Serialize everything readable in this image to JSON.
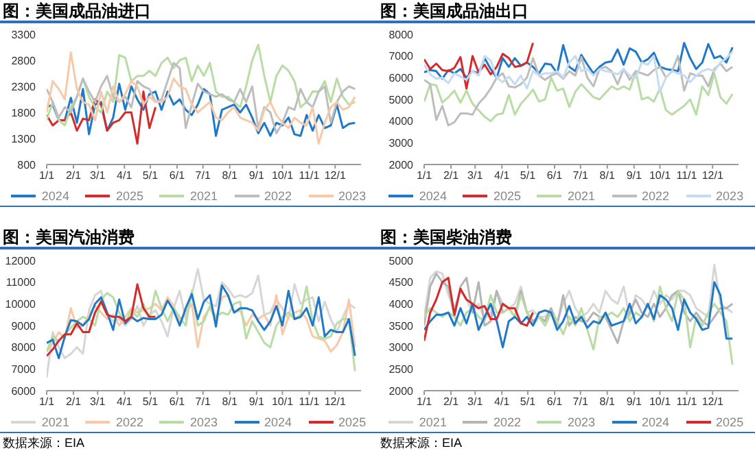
{
  "chart_data": [
    {
      "type": "line",
      "title": "图：美国成品油进口",
      "legend": "bottom",
      "marker": "none",
      "xlim": [
        "--01-01",
        "--12-31"
      ],
      "ylim": [
        800,
        3300
      ],
      "yticks": [
        800,
        1300,
        1800,
        2300,
        2800,
        3300
      ],
      "xticks": [
        {
          "value": "--01-01",
          "label": "1/1"
        },
        {
          "value": "--02-01",
          "label": "2/1"
        },
        {
          "value": "--03-01",
          "label": "3/1"
        },
        {
          "value": "--04-01",
          "label": "4/1"
        },
        {
          "value": "--05-01",
          "label": "5/1"
        },
        {
          "value": "--06-01",
          "label": "6/1"
        },
        {
          "value": "--07-01",
          "label": "7/1"
        },
        {
          "value": "--08-01",
          "label": "8/1"
        },
        {
          "value": "--09-01",
          "label": "9/1"
        },
        {
          "value": "--10-01",
          "label": "10/1"
        },
        {
          "value": "--11-01",
          "label": "11/1"
        },
        {
          "value": "--12-01",
          "label": "12/1"
        }
      ],
      "x": [
        "--01-01",
        "--01-08",
        "--01-15",
        "--01-22",
        "--01-29",
        "--02-05",
        "--02-12",
        "--02-19",
        "--02-26",
        "--03-05",
        "--03-12",
        "--03-19",
        "--03-26",
        "--04-02",
        "--04-09",
        "--04-16",
        "--04-23",
        "--04-30",
        "--05-07",
        "--05-14",
        "--05-21",
        "--05-28",
        "--06-04",
        "--06-11",
        "--06-18",
        "--06-25",
        "--07-02",
        "--07-09",
        "--07-16",
        "--07-23",
        "--07-30",
        "--08-06",
        "--08-13",
        "--08-20",
        "--08-27",
        "--09-03",
        "--09-10",
        "--09-17",
        "--09-24",
        "--10-01",
        "--10-08",
        "--10-15",
        "--10-22",
        "--10-29",
        "--11-05",
        "--11-12",
        "--11-19",
        "--11-26",
        "--12-03",
        "--12-10",
        "--12-17",
        "--12-24"
      ],
      "series": [
        {
          "name": "2024",
          "color": "#1f78c8",
          "values": [
            1900,
            1950,
            1650,
            1650,
            2080,
            1600,
            2250,
            1380,
            1950,
            2000,
            1450,
            1700,
            2350,
            1850,
            2300,
            2050,
            1850,
            2150,
            2200,
            1850,
            2200,
            1950,
            2050,
            1850,
            1750,
            1950,
            2250,
            2150,
            1350,
            1850,
            1900,
            1950,
            1800,
            1950,
            1700,
            1400,
            1600,
            1350,
            1600,
            1550,
            1700,
            1380,
            1350,
            1750,
            1450,
            1750,
            1500,
            1550,
            1950,
            1500,
            1580,
            1600
          ]
        },
        {
          "name": "2025",
          "color": "#d62a2a",
          "x": [
            "--01-01",
            "--01-08",
            "--01-15",
            "--01-22",
            "--01-29",
            "--02-05",
            "--02-12",
            "--02-19",
            "--02-26",
            "--03-05",
            "--03-12",
            "--03-19",
            "--03-26",
            "--04-02",
            "--04-09",
            "--04-16",
            "--04-23",
            "--04-30",
            "--05-07"
          ],
          "values": [
            1750,
            1550,
            1650,
            1650,
            1800,
            1450,
            1680,
            1650,
            2050,
            1950,
            1450,
            1600,
            1650,
            1800,
            1800,
            1200,
            2200,
            1500,
            1900
          ]
        },
        {
          "name": "2021",
          "color": "#b8dca4",
          "values": [
            1650,
            2000,
            1650,
            1550,
            1900,
            2100,
            2450,
            2100,
            1900,
            1800,
            2200,
            2000,
            2900,
            2850,
            2400,
            2500,
            2500,
            2600,
            2500,
            2750,
            2850,
            2650,
            2800,
            2850,
            2400,
            2700,
            2500,
            2750,
            2200,
            2100,
            2100,
            2000,
            1900,
            2300,
            2800,
            3100,
            2500,
            2000,
            2500,
            2700,
            2600,
            2400,
            1900,
            2000,
            2200,
            2200,
            2400,
            2000,
            2450,
            2100,
            1950,
            2000
          ]
        },
        {
          "name": "2022",
          "color": "#bdbdbd",
          "values": [
            2250,
            2000,
            1700,
            1900,
            1800,
            2100,
            2450,
            2200,
            2000,
            2300,
            2500,
            2100,
            2000,
            2100,
            1900,
            2400,
            2300,
            2250,
            2000,
            2050,
            2400,
            2750,
            2650,
            1500,
            1950,
            2350,
            2200,
            2150,
            2100,
            2150,
            2050,
            2000,
            2250,
            2000,
            2300,
            1500,
            1900,
            1800,
            1400,
            1600,
            1900,
            1850,
            2250,
            2000,
            1900,
            2200,
            2300,
            1600,
            2000,
            2200,
            2300,
            2250
          ]
        },
        {
          "name": "2023",
          "color": "#f8c8a8",
          "values": [
            1800,
            2400,
            2250,
            2050,
            2950,
            2250,
            2000,
            1950,
            1650,
            2200,
            1800,
            2300,
            2000,
            2150,
            2400,
            2300,
            1950,
            2100,
            2000,
            2000,
            2100,
            2450,
            2300,
            2250,
            1950,
            1800,
            1900,
            2000,
            1700,
            1650,
            1800,
            1900,
            1700,
            1650,
            1600,
            1450,
            1850,
            2000,
            1750,
            1600,
            1500,
            1700,
            1600,
            1550,
            1900,
            1200,
            1600,
            1900,
            2000,
            1850,
            1900,
            2100
          ]
        }
      ]
    },
    {
      "type": "line",
      "title": "图：美国成品油出口",
      "legend": "bottom",
      "marker": "none",
      "xlim": [
        "--01-01",
        "--12-31"
      ],
      "ylim": [
        2000,
        8000
      ],
      "yticks": [
        2000,
        3000,
        4000,
        5000,
        6000,
        7000,
        8000
      ],
      "xticks": [
        {
          "value": "--01-01",
          "label": "1/1"
        },
        {
          "value": "--02-01",
          "label": "2/1"
        },
        {
          "value": "--03-01",
          "label": "3/1"
        },
        {
          "value": "--04-01",
          "label": "4/1"
        },
        {
          "value": "--05-01",
          "label": "5/1"
        },
        {
          "value": "--06-01",
          "label": "6/1"
        },
        {
          "value": "--07-01",
          "label": "7/1"
        },
        {
          "value": "--08-01",
          "label": "8/1"
        },
        {
          "value": "--09-01",
          "label": "9/1"
        },
        {
          "value": "--10-01",
          "label": "10/1"
        },
        {
          "value": "--11-01",
          "label": "11/1"
        },
        {
          "value": "--12-01",
          "label": "12/1"
        }
      ],
      "x": [
        "--01-01",
        "--01-08",
        "--01-15",
        "--01-22",
        "--01-29",
        "--02-05",
        "--02-12",
        "--02-19",
        "--02-26",
        "--03-05",
        "--03-12",
        "--03-19",
        "--03-26",
        "--04-02",
        "--04-09",
        "--04-16",
        "--04-23",
        "--04-30",
        "--05-07",
        "--05-14",
        "--05-21",
        "--05-28",
        "--06-04",
        "--06-11",
        "--06-18",
        "--06-25",
        "--07-02",
        "--07-09",
        "--07-16",
        "--07-23",
        "--07-30",
        "--08-06",
        "--08-13",
        "--08-20",
        "--08-27",
        "--09-03",
        "--09-10",
        "--09-17",
        "--09-24",
        "--10-01",
        "--10-08",
        "--10-15",
        "--10-22",
        "--10-29",
        "--11-05",
        "--11-12",
        "--11-19",
        "--11-26",
        "--12-03",
        "--12-10",
        "--12-17",
        "--12-24"
      ],
      "series": [
        {
          "name": "2024",
          "color": "#1f78c8",
          "values": [
            6250,
            6350,
            6300,
            5950,
            6350,
            6200,
            6400,
            6000,
            6300,
            6200,
            6900,
            6400,
            6000,
            6900,
            6500,
            6900,
            6550,
            6700,
            6500,
            6200,
            6650,
            6600,
            6200,
            7500,
            6500,
            6300,
            7050,
            6600,
            6200,
            6500,
            6700,
            6750,
            7300,
            6600,
            7350,
            7200,
            6700,
            6850,
            7150,
            6500,
            6400,
            6350,
            6300,
            7600,
            6900,
            6400,
            6700,
            7550,
            6900,
            7000,
            6700,
            7400
          ]
        },
        {
          "name": "2025",
          "color": "#d62a2a",
          "x": [
            "--01-01",
            "--01-08",
            "--01-15",
            "--01-22",
            "--01-29",
            "--02-05",
            "--02-12",
            "--02-19",
            "--02-26",
            "--03-05",
            "--03-12",
            "--03-19",
            "--03-26",
            "--04-02",
            "--04-09",
            "--04-16",
            "--04-23",
            "--04-30",
            "--05-07"
          ],
          "values": [
            6850,
            6400,
            6650,
            6350,
            6300,
            6450,
            6950,
            5500,
            7000,
            6250,
            6600,
            6150,
            6500,
            7100,
            6900,
            6500,
            6550,
            6700,
            7600
          ]
        },
        {
          "name": "2021",
          "color": "#b8dca4",
          "values": [
            4900,
            5700,
            5650,
            4850,
            5100,
            5400,
            4850,
            5400,
            4800,
            4500,
            4200,
            4000,
            4300,
            4350,
            5200,
            4300,
            4800,
            5100,
            5450,
            4900,
            5000,
            6000,
            5400,
            5500,
            4650,
            5350,
            5700,
            5400,
            5100,
            5000,
            5300,
            5600,
            5450,
            5600,
            5450,
            6300,
            5000,
            5100,
            4900,
            5500,
            4500,
            4300,
            4500,
            4700,
            5000,
            4300,
            5600,
            5200,
            6200,
            5100,
            4800,
            5250
          ]
        },
        {
          "name": "2022",
          "color": "#bdbdbd",
          "values": [
            5900,
            5700,
            4050,
            4700,
            3800,
            3950,
            4350,
            4350,
            4300,
            4800,
            5100,
            5500,
            6000,
            6200,
            5600,
            5550,
            5700,
            6000,
            6900,
            6100,
            5900,
            6100,
            6200,
            5950,
            6300,
            6100,
            6950,
            6000,
            5600,
            6400,
            6500,
            6300,
            5700,
            6400,
            5900,
            6300,
            6200,
            6100,
            6350,
            6500,
            6000,
            6300,
            7000,
            5400,
            6200,
            6100,
            6100,
            5600,
            6400,
            6650,
            6300,
            6500
          ]
        },
        {
          "name": "2023",
          "color": "#c4dcf2",
          "values": [
            6600,
            6150,
            5950,
            6000,
            5750,
            6200,
            6050,
            5900,
            6300,
            6100,
            7000,
            6800,
            6000,
            5800,
            6050,
            5700,
            6100,
            5500,
            6300,
            6100,
            6200,
            6200,
            6300,
            6000,
            6700,
            7000,
            6300,
            6400,
            6100,
            6400,
            6300,
            6250,
            6150,
            6400,
            6100,
            6000,
            6700,
            6600,
            7000,
            5350,
            6000,
            6300,
            6200,
            6100,
            5800,
            6100,
            6300,
            6400,
            6300,
            6700,
            6900,
            7200
          ]
        }
      ]
    },
    {
      "type": "line",
      "title": "图：美国汽油消费",
      "legend": "bottom",
      "marker": "none",
      "annotations": [
        "数据来源：EIA"
      ],
      "xlim": [
        "--01-01",
        "--12-31"
      ],
      "ylim": [
        6000,
        12000
      ],
      "yticks": [
        6000,
        7000,
        8000,
        9000,
        10000,
        11000,
        12000
      ],
      "xticks": [
        {
          "value": "--01-01",
          "label": "1/1"
        },
        {
          "value": "--02-01",
          "label": "2/1"
        },
        {
          "value": "--03-01",
          "label": "3/1"
        },
        {
          "value": "--04-01",
          "label": "4/1"
        },
        {
          "value": "--05-01",
          "label": "5/1"
        },
        {
          "value": "--06-01",
          "label": "6/1"
        },
        {
          "value": "--07-01",
          "label": "7/1"
        },
        {
          "value": "--08-01",
          "label": "8/1"
        },
        {
          "value": "--09-01",
          "label": "9/1"
        },
        {
          "value": "--10-01",
          "label": "10/1"
        },
        {
          "value": "--11-01",
          "label": "11/1"
        },
        {
          "value": "--12-01",
          "label": "12/1"
        }
      ],
      "x": [
        "--01-01",
        "--01-08",
        "--01-15",
        "--01-22",
        "--01-29",
        "--02-05",
        "--02-12",
        "--02-19",
        "--02-26",
        "--03-05",
        "--03-12",
        "--03-19",
        "--03-26",
        "--04-02",
        "--04-09",
        "--04-16",
        "--04-23",
        "--04-30",
        "--05-07",
        "--05-14",
        "--05-21",
        "--05-28",
        "--06-04",
        "--06-11",
        "--06-18",
        "--06-25",
        "--07-02",
        "--07-09",
        "--07-16",
        "--07-23",
        "--07-30",
        "--08-06",
        "--08-13",
        "--08-20",
        "--08-27",
        "--09-03",
        "--09-10",
        "--09-17",
        "--09-24",
        "--10-01",
        "--10-08",
        "--10-15",
        "--10-22",
        "--10-29",
        "--11-05",
        "--11-12",
        "--11-19",
        "--11-26",
        "--12-03",
        "--12-10",
        "--12-17",
        "--12-24"
      ],
      "series": [
        {
          "name": "2021",
          "color": "#d6d6d6",
          "values": [
            6600,
            8700,
            8000,
            7500,
            7700,
            8000,
            7700,
            9700,
            10400,
            10600,
            9500,
            9200,
            9300,
            9000,
            9300,
            9900,
            9000,
            9500,
            9700,
            9200,
            8500,
            9800,
            10600,
            9300,
            10400,
            11600,
            10200,
            10000,
            9900,
            11000,
            10700,
            10300,
            10400,
            10300,
            10500,
            11300,
            9500,
            9600,
            10200,
            9800,
            9300,
            10900,
            10000,
            10200,
            10300,
            9200,
            10100,
            9300,
            8700,
            9400,
            10000,
            9800
          ]
        },
        {
          "name": "2022",
          "color": "#f8c8a8",
          "values": [
            7800,
            8200,
            8700,
            8400,
            9800,
            8900,
            9000,
            9500,
            9900,
            9600,
            9300,
            9500,
            9000,
            9400,
            9800,
            9600,
            9700,
            9800,
            10000,
            9700,
            10300,
            9900,
            9200,
            9600,
            10000,
            8000,
            9400,
            9800,
            9300,
            10300,
            10400,
            9600,
            9700,
            9000,
            9500,
            9300,
            9500,
            9000,
            10400,
            8600,
            9400,
            9600,
            9700,
            9300,
            8500,
            8400,
            8300,
            7800,
            8100,
            8700,
            10200,
            8000
          ]
        },
        {
          "name": "2023",
          "color": "#b8dca4",
          "values": [
            7800,
            8500,
            8300,
            8600,
            8900,
            9200,
            9400,
            9300,
            9000,
            10200,
            10500,
            10300,
            9600,
            9100,
            9700,
            9400,
            10000,
            9300,
            10600,
            9800,
            9200,
            9800,
            9400,
            9000,
            10600,
            9000,
            9200,
            9900,
            9400,
            9600,
            9500,
            10000,
            10100,
            8400,
            9200,
            8700,
            8200,
            8000,
            9000,
            9400,
            9600,
            9300,
            9500,
            10800,
            9200,
            8500,
            8400,
            8500,
            9100,
            9300,
            9300,
            6900
          ]
        },
        {
          "name": "2024",
          "color": "#1f78c8",
          "values": [
            8200,
            8350,
            7500,
            8500,
            9250,
            9200,
            9000,
            9300,
            10000,
            10300,
            9600,
            8800,
            10200,
            9100,
            9400,
            9200,
            9350,
            9300,
            9300,
            9500,
            10150,
            9700,
            9000,
            9800,
            10450,
            9300,
            10100,
            10400,
            8950,
            10850,
            10400,
            9600,
            9800,
            9800,
            9700,
            9200,
            8800,
            9200,
            9900,
            9000,
            10600,
            9300,
            9400,
            9800,
            9000,
            10300,
            8500,
            8800,
            8700,
            8700,
            9300,
            7600
          ]
        },
        {
          "name": "2025",
          "color": "#d62a2a",
          "x": [
            "--01-01",
            "--01-08",
            "--01-15",
            "--01-22",
            "--01-29",
            "--02-05",
            "--02-12",
            "--02-19",
            "--02-26",
            "--03-05",
            "--03-12",
            "--03-19",
            "--03-26",
            "--04-02",
            "--04-09",
            "--04-16",
            "--04-23",
            "--04-30",
            "--05-07"
          ],
          "values": [
            7600,
            7900,
            8300,
            8600,
            8600,
            9100,
            8700,
            8700,
            9600,
            10100,
            9500,
            9400,
            9400,
            9200,
            9400,
            10900,
            9800,
            9400,
            9400
          ]
        }
      ]
    },
    {
      "type": "line",
      "title": "图：美国柴油消费",
      "legend": "bottom",
      "marker": "none",
      "annotations": [
        "数据来源：EIA"
      ],
      "xlim": [
        "--01-01",
        "--12-31"
      ],
      "ylim": [
        2000,
        5000
      ],
      "yticks": [
        2000,
        2500,
        3000,
        3500,
        4000,
        4500,
        5000
      ],
      "xticks": [
        {
          "value": "--01-01",
          "label": "1/1"
        },
        {
          "value": "--02-01",
          "label": "2/1"
        },
        {
          "value": "--03-01",
          "label": "3/1"
        },
        {
          "value": "--04-01",
          "label": "4/1"
        },
        {
          "value": "--05-01",
          "label": "5/1"
        },
        {
          "value": "--06-01",
          "label": "6/1"
        },
        {
          "value": "--07-01",
          "label": "7/1"
        },
        {
          "value": "--08-01",
          "label": "8/1"
        },
        {
          "value": "--09-01",
          "label": "9/1"
        },
        {
          "value": "--10-01",
          "label": "10/1"
        },
        {
          "value": "--11-01",
          "label": "11/1"
        },
        {
          "value": "--12-01",
          "label": "12/1"
        }
      ],
      "x": [
        "--01-01",
        "--01-08",
        "--01-15",
        "--01-22",
        "--01-29",
        "--02-05",
        "--02-12",
        "--02-19",
        "--02-26",
        "--03-05",
        "--03-12",
        "--03-19",
        "--03-26",
        "--04-02",
        "--04-09",
        "--04-16",
        "--04-23",
        "--04-30",
        "--05-07",
        "--05-14",
        "--05-21",
        "--05-28",
        "--06-04",
        "--06-11",
        "--06-18",
        "--06-25",
        "--07-02",
        "--07-09",
        "--07-16",
        "--07-23",
        "--07-30",
        "--08-06",
        "--08-13",
        "--08-20",
        "--08-27",
        "--09-03",
        "--09-10",
        "--09-17",
        "--09-24",
        "--10-01",
        "--10-08",
        "--10-15",
        "--10-22",
        "--10-29",
        "--11-05",
        "--11-12",
        "--11-19",
        "--11-26",
        "--12-03",
        "--12-10",
        "--12-17",
        "--12-24"
      ],
      "series": [
        {
          "name": "2021",
          "color": "#d6d6d6",
          "values": [
            3700,
            4600,
            4750,
            4700,
            4200,
            3900,
            4300,
            4100,
            3800,
            4000,
            3650,
            3800,
            4300,
            4000,
            3900,
            4000,
            4400,
            3800,
            3850,
            3700,
            3700,
            3900,
            3600,
            4000,
            4300,
            3900,
            3700,
            3800,
            4000,
            3800,
            4300,
            4100,
            4000,
            4400,
            3700,
            4200,
            4100,
            3900,
            4300,
            4000,
            4200,
            4100,
            4300,
            4300,
            4200,
            3900,
            3800,
            3700,
            4900,
            4000,
            3900,
            3800
          ]
        },
        {
          "name": "2022",
          "color": "#b4b4b4",
          "values": [
            3500,
            4400,
            4700,
            4500,
            4400,
            3700,
            4400,
            4600,
            3800,
            4500,
            3500,
            3600,
            4300,
            3800,
            3900,
            3700,
            4300,
            3800,
            3600,
            3700,
            3600,
            3900,
            3500,
            4200,
            3500,
            3700,
            3600,
            3600,
            3800,
            3700,
            3700,
            3400,
            3100,
            3600,
            3800,
            4100,
            3800,
            3700,
            4000,
            3700,
            3900,
            4200,
            4300,
            3800,
            3600,
            3800,
            3600,
            3500,
            3700,
            3900,
            3900,
            4000
          ]
        },
        {
          "name": "2023",
          "color": "#b8dca4",
          "values": [
            3700,
            3900,
            3800,
            3700,
            3800,
            3700,
            3500,
            3800,
            3900,
            3700,
            3600,
            4200,
            3800,
            3800,
            3900,
            3700,
            4200,
            3800,
            3500,
            3700,
            3500,
            3800,
            3600,
            3300,
            3700,
            3500,
            3900,
            3400,
            2950,
            3700,
            3700,
            3800,
            3700,
            3900,
            3600,
            3800,
            3700,
            4000,
            3600,
            4400,
            3900,
            3600,
            4300,
            4100,
            3000,
            3700,
            3500,
            3800,
            4000,
            3800,
            3600,
            2600
          ]
        },
        {
          "name": "2024",
          "color": "#1f78c8",
          "values": [
            3400,
            3600,
            3750,
            3750,
            3800,
            3500,
            3900,
            3550,
            4000,
            3400,
            3700,
            4000,
            3600,
            3000,
            3600,
            3700,
            3550,
            3700,
            3500,
            3800,
            3850,
            3800,
            3400,
            3600,
            3950,
            3550,
            3700,
            3450,
            3600,
            3550,
            3800,
            3500,
            3550,
            3600,
            4000,
            3550,
            3700,
            4000,
            3650,
            4200,
            4100,
            3900,
            3400,
            4100,
            3800,
            3650,
            3400,
            3450,
            4500,
            4200,
            3200,
            3200
          ]
        },
        {
          "name": "2025",
          "color": "#d62a2a",
          "x": [
            "--01-01",
            "--01-08",
            "--01-15",
            "--01-22",
            "--01-29",
            "--02-05",
            "--02-12",
            "--02-19",
            "--02-26",
            "--03-05",
            "--03-12",
            "--03-19",
            "--03-26",
            "--04-02",
            "--04-09",
            "--04-16",
            "--04-23",
            "--04-30",
            "--05-07"
          ],
          "values": [
            3150,
            3800,
            4100,
            4500,
            4600,
            3750,
            4350,
            4100,
            4000,
            3900,
            3950,
            3650,
            3650,
            4000,
            3900,
            3900,
            3550,
            3500,
            3800
          ]
        }
      ]
    }
  ]
}
